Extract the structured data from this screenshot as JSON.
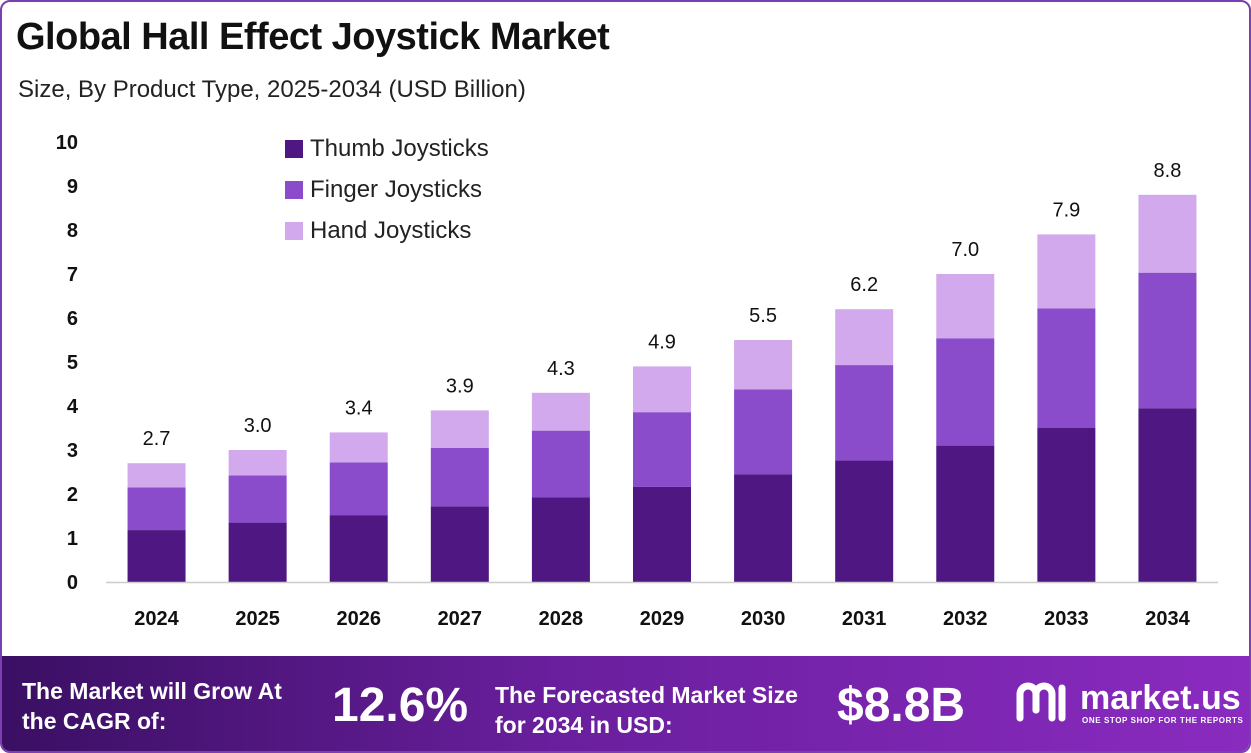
{
  "title": "Global Hall Effect Joystick Market",
  "subtitle": "Size, By Product Type, 2025-2034 (USD Billion)",
  "colors": {
    "thumb": "#4f1782",
    "finger": "#8b4ccb",
    "hand": "#d1a9ec",
    "axis": "#cccccc",
    "footer_start": "#3a0f63",
    "footer_end": "#8a2bc0"
  },
  "chart_data": {
    "type": "bar",
    "stacked": true,
    "categories": [
      "2024",
      "2025",
      "2026",
      "2027",
      "2028",
      "2029",
      "2030",
      "2031",
      "2032",
      "2033",
      "2034"
    ],
    "series": [
      {
        "name": "Thumb Joysticks",
        "values": [
          1.18,
          1.35,
          1.52,
          1.72,
          1.92,
          2.16,
          2.45,
          2.76,
          3.1,
          3.5,
          3.95
        ]
      },
      {
        "name": "Finger Joysticks",
        "values": [
          0.97,
          1.07,
          1.2,
          1.33,
          1.52,
          1.7,
          1.93,
          2.17,
          2.44,
          2.72,
          3.08
        ]
      },
      {
        "name": "Hand Joysticks",
        "values": [
          0.55,
          0.58,
          0.68,
          0.85,
          0.86,
          1.04,
          1.12,
          1.27,
          1.46,
          1.68,
          1.77
        ]
      }
    ],
    "totals": [
      "2.7",
      "3.0",
      "3.4",
      "3.9",
      "4.3",
      "4.9",
      "5.5",
      "6.2",
      "7.0",
      "7.9",
      "8.8"
    ],
    "y_ticks": [
      "0",
      "1",
      "2",
      "3",
      "4",
      "5",
      "6",
      "7",
      "8",
      "9",
      "10"
    ],
    "ylim": [
      0,
      10
    ],
    "grid": false,
    "legend_position": "top-left"
  },
  "footer": {
    "cagr_label": "The Market will Grow At the CAGR of:",
    "cagr_value": "12.6%",
    "forecast_label": "The Forecasted Market Size for 2034 in USD:",
    "forecast_value": "$8.8B",
    "brand_name": "market.us",
    "brand_tagline": "ONE STOP SHOP FOR THE REPORTS",
    "brand_icon": "market-us-logo"
  }
}
